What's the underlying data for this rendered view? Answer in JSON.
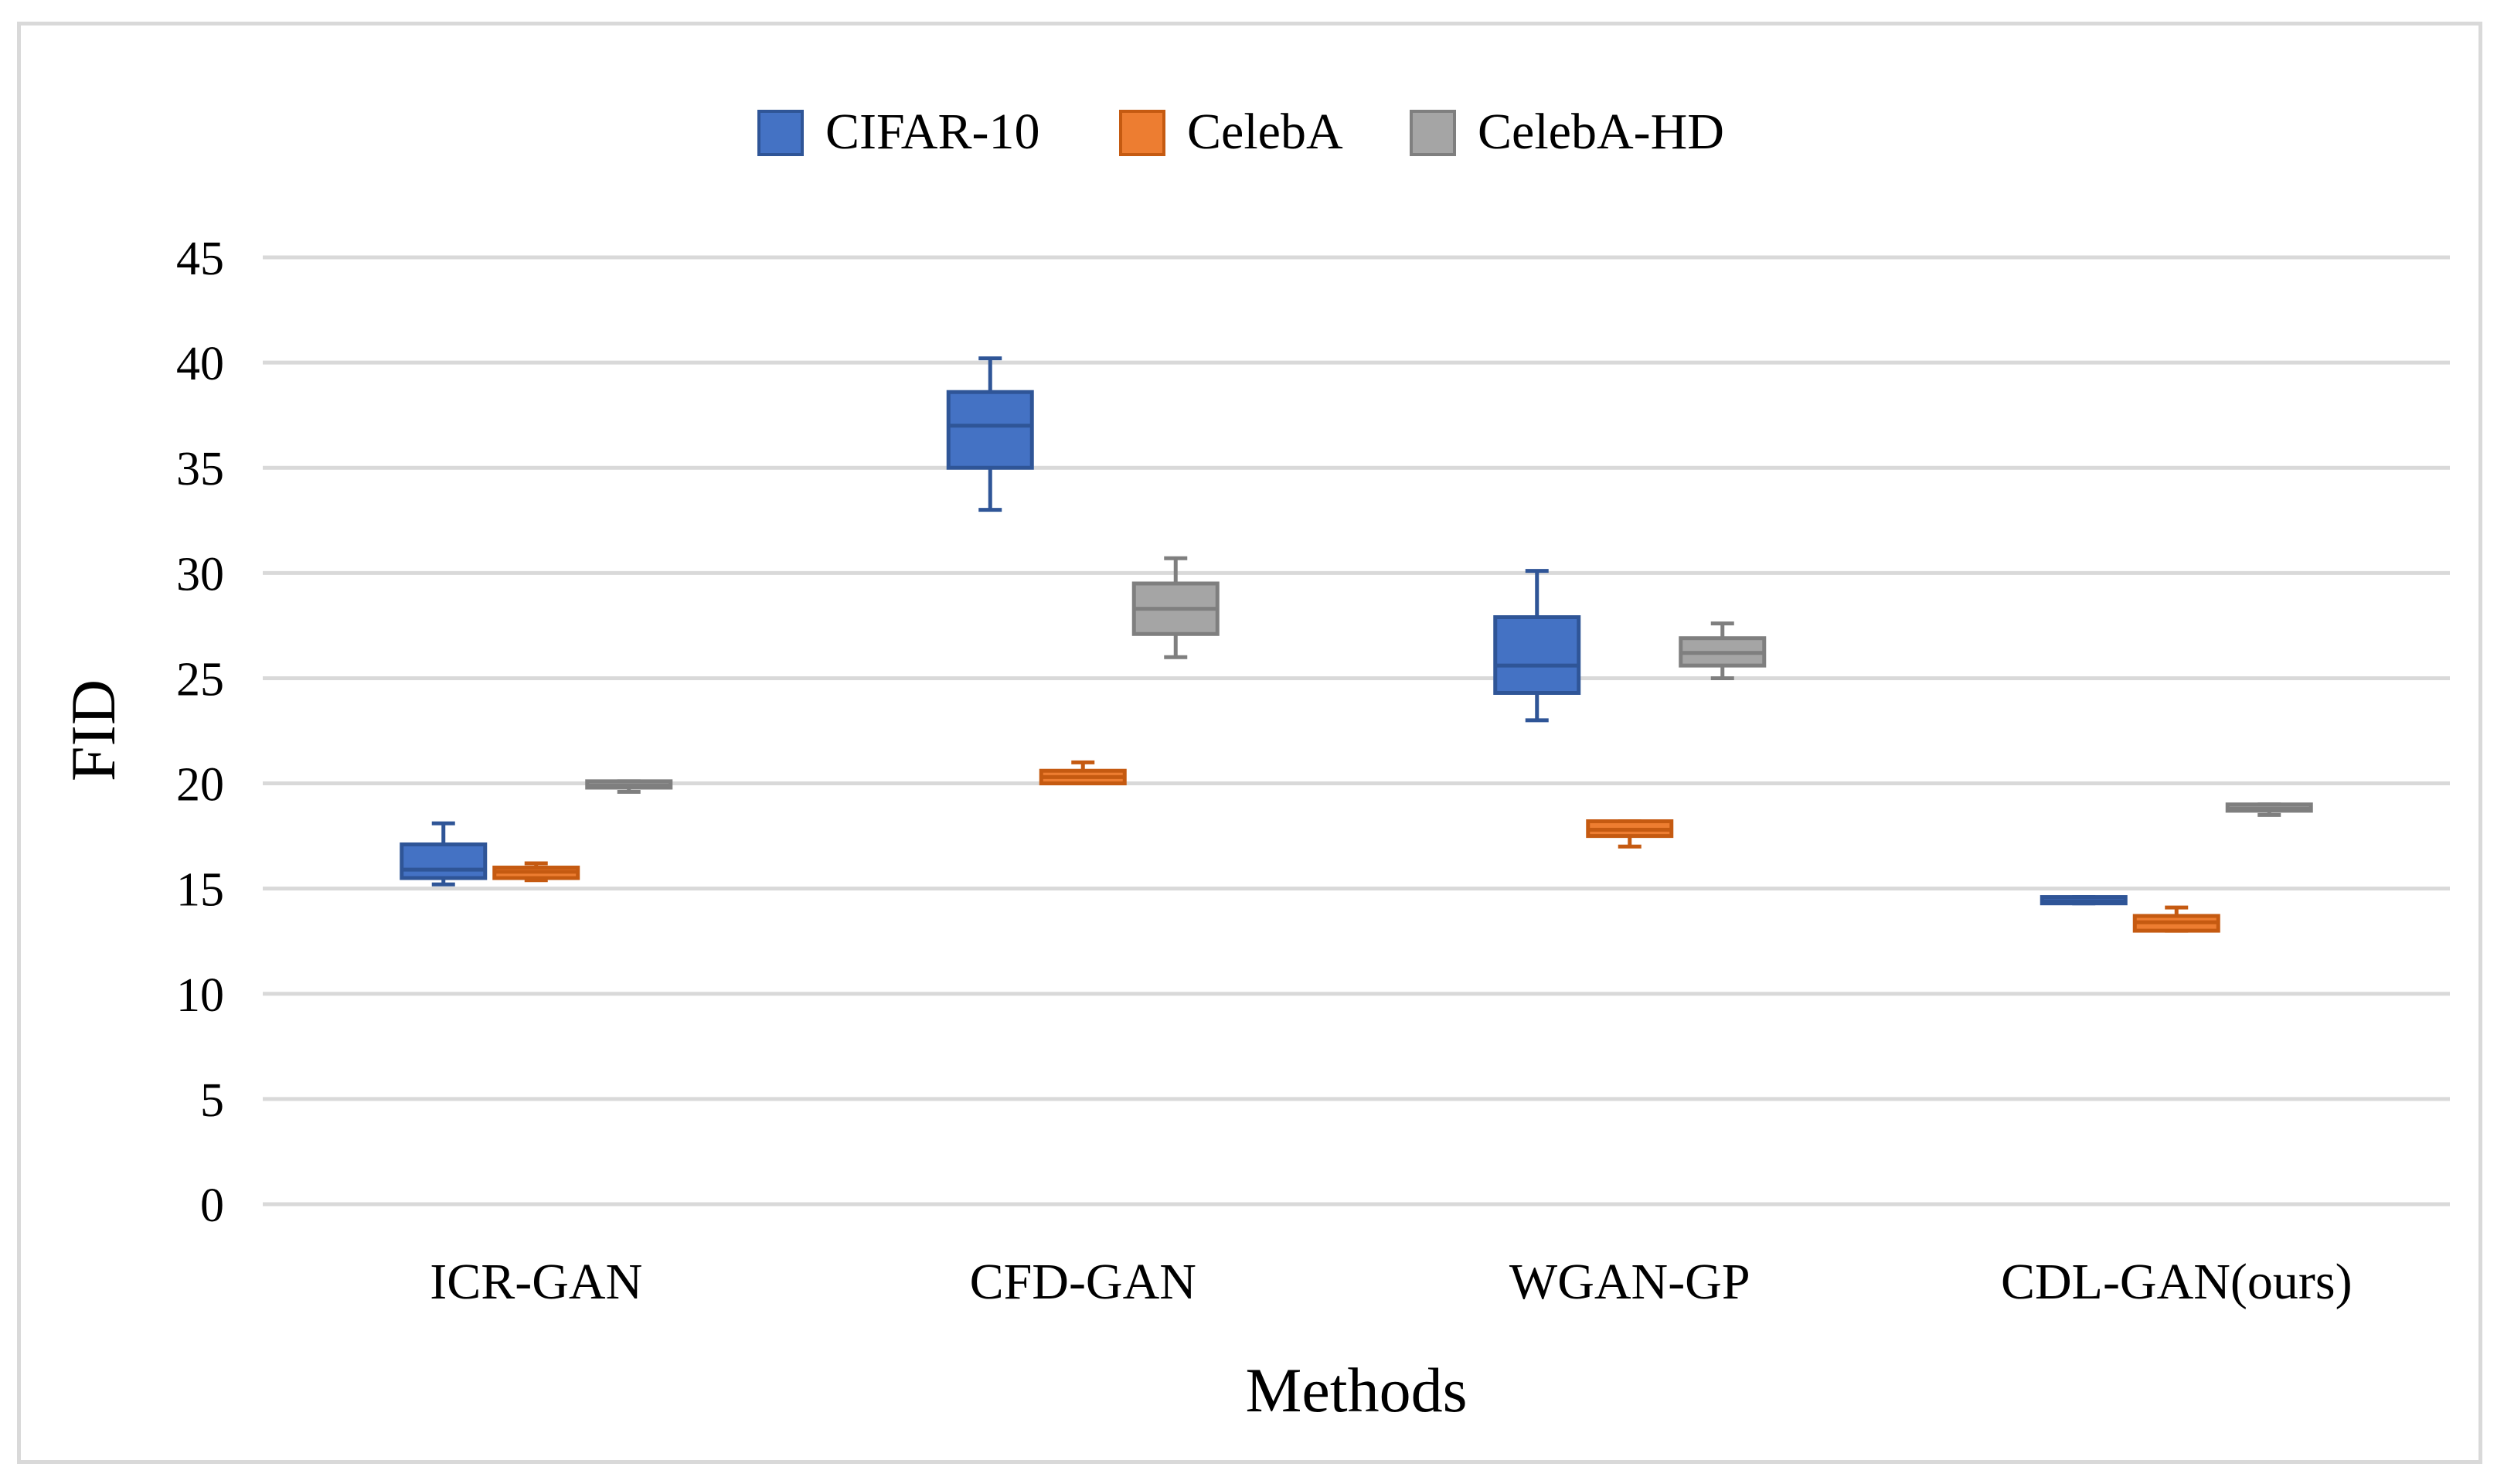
{
  "chart_data": {
    "type": "boxplot",
    "title": "",
    "xlabel": "Methods",
    "ylabel": "FID",
    "ylim": [
      0,
      45
    ],
    "yticks": [
      0,
      5,
      10,
      15,
      20,
      25,
      30,
      35,
      40,
      45
    ],
    "ytick_labels": [
      "0",
      "5",
      "10",
      "15",
      "20",
      "25",
      "30",
      "35",
      "40",
      "45"
    ],
    "grid": true,
    "legend_position": "top-center",
    "categories": [
      "ICR-GAN",
      "CFD-GAN",
      "WGAN-GP",
      "CDL-GAN(ours)"
    ],
    "series": [
      {
        "name": "CIFAR-10",
        "color": "#4472C4",
        "stroke": "#2F5597",
        "boxes": [
          {
            "min": 15.2,
            "q1": 15.5,
            "median": 15.9,
            "q3": 17.1,
            "max": 18.1
          },
          {
            "min": 33.0,
            "q1": 35.0,
            "median": 37.0,
            "q3": 38.6,
            "max": 40.2
          },
          {
            "min": 23.0,
            "q1": 24.3,
            "median": 25.6,
            "q3": 27.9,
            "max": 30.1
          },
          {
            "min": 14.3,
            "q1": 14.3,
            "median": 14.4,
            "q3": 14.6,
            "max": 14.6
          }
        ]
      },
      {
        "name": "CelebA",
        "color": "#ED7D31",
        "stroke": "#C55A11",
        "boxes": [
          {
            "min": 15.4,
            "q1": 15.5,
            "median": 15.8,
            "q3": 16.0,
            "max": 16.2
          },
          {
            "min": 20.0,
            "q1": 20.0,
            "median": 20.3,
            "q3": 20.6,
            "max": 21.0
          },
          {
            "min": 17.0,
            "q1": 17.5,
            "median": 17.8,
            "q3": 18.2,
            "max": 18.2
          },
          {
            "min": 13.0,
            "q1": 13.0,
            "median": 13.4,
            "q3": 13.7,
            "max": 14.1
          }
        ]
      },
      {
        "name": "CelebA-HD",
        "color": "#A5A5A5",
        "stroke": "#7F7F7F",
        "boxes": [
          {
            "min": 19.6,
            "q1": 19.8,
            "median": 19.9,
            "q3": 20.1,
            "max": 20.1
          },
          {
            "min": 26.0,
            "q1": 27.1,
            "median": 28.3,
            "q3": 29.5,
            "max": 30.7
          },
          {
            "min": 25.0,
            "q1": 25.6,
            "median": 26.2,
            "q3": 26.9,
            "max": 27.6
          },
          {
            "min": 18.5,
            "q1": 18.7,
            "median": 18.8,
            "q3": 19.0,
            "max": 19.0
          }
        ]
      }
    ]
  }
}
